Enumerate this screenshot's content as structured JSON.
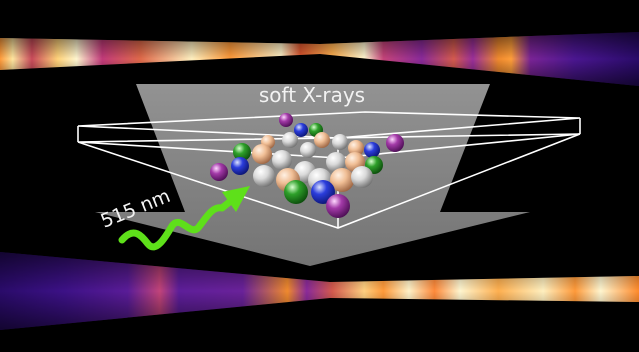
{
  "labels": {
    "xray": "soft X-rays",
    "laser": "515 nm"
  },
  "colors": {
    "background": "#000000",
    "frame": "#ffffff",
    "beam": "#8c8c8c",
    "laser_arrow": "#5ee01a",
    "spectrum_dark": "#2a0b66",
    "spectrum_mid": "#9a2a9a",
    "spectrum_hot": "#ff8a2a",
    "spectrum_peak": "#fff6d0",
    "sphere_silver": "#e8e8e8",
    "sphere_peach": "#f2c6a2",
    "sphere_green": "#2e9a2e",
    "sphere_blue": "#2f3fd8",
    "sphere_purple": "#a23aa8"
  },
  "icons": {
    "laser_arrow": "wavy-arrow-icon",
    "xray_beam": "trapezoid-beam-icon",
    "sample_box": "wireframe-box-icon",
    "cluster": "nanoparticle-cluster-icon"
  }
}
